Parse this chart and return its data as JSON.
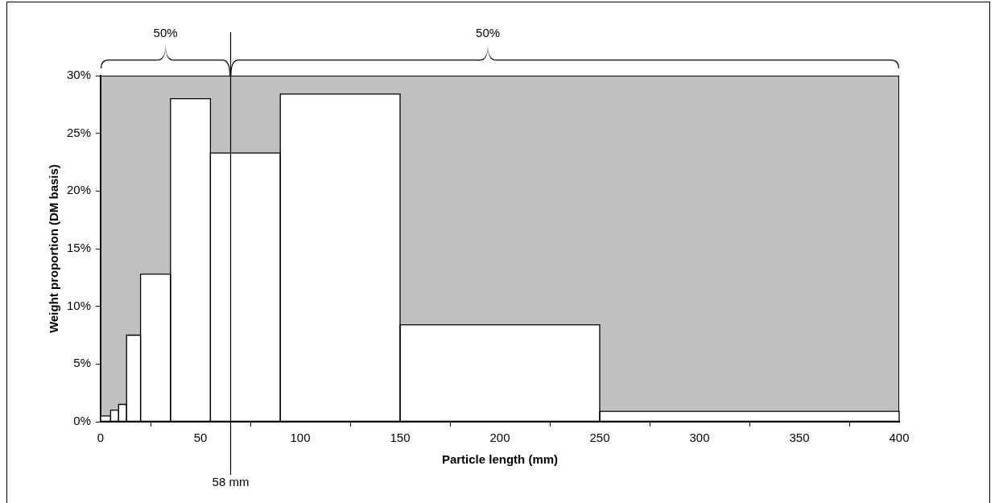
{
  "chart_data": {
    "type": "histogram",
    "xlabel": "Particle length (mm)",
    "ylabel": "Weight proportion (DM basis)",
    "bins": [
      0,
      5,
      9,
      13,
      20,
      35,
      55,
      90,
      150,
      250,
      400
    ],
    "values": [
      0.5,
      1.0,
      1.5,
      7.5,
      12.8,
      28.0,
      23.3,
      28.4,
      8.4,
      0.9
    ],
    "color": "#ffffff",
    "xlim": [
      0,
      400
    ],
    "xticks": [
      0,
      50,
      100,
      150,
      200,
      250,
      300,
      350,
      400
    ],
    "ylim": [
      0,
      30
    ],
    "yticks": [
      {
        "value": 0,
        "label": "0%"
      },
      {
        "value": 5,
        "label": "5%"
      },
      {
        "value": 10,
        "label": "10%"
      },
      {
        "value": 15,
        "label": "15%"
      },
      {
        "value": 20,
        "label": "20%"
      },
      {
        "value": 25,
        "label": "25%"
      },
      {
        "value": 30,
        "label": "30%"
      }
    ],
    "grid": false,
    "legend": false,
    "ref_lines": [
      {
        "axis": "x",
        "value": 65,
        "label": "58 mm"
      }
    ],
    "annotations": [
      "50%",
      "50%"
    ]
  }
}
